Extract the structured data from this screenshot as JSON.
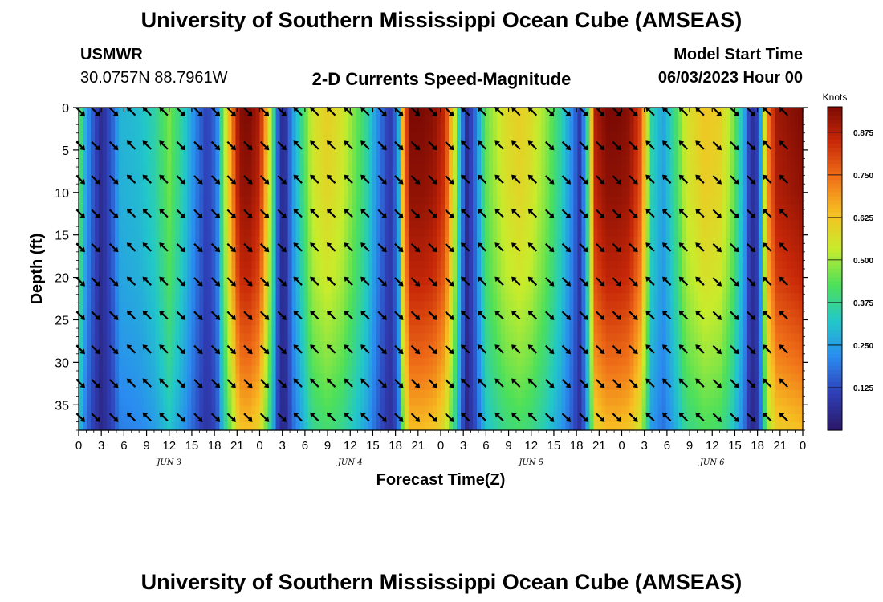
{
  "header": {
    "title": "University of Southern Mississippi Ocean Cube (AMSEAS)",
    "station": "USMWR",
    "location": "30.0757N  88.7961W",
    "model_label": "Model Start Time",
    "model_time": "06/03/2023 Hour 00"
  },
  "footer": {
    "title": "University of Southern Mississippi Ocean Cube (AMSEAS)"
  },
  "chart_data": {
    "type": "heatmap",
    "title": "2-D Currents Speed-Magnitude",
    "xlabel": "Forecast Time(Z)",
    "ylabel": "Depth (ft)",
    "x_range_hours": [
      0,
      96
    ],
    "y_range_ft": [
      0,
      38
    ],
    "y_inverted": true,
    "x_tick_labels": [
      "0",
      "3",
      "6",
      "9",
      "12",
      "15",
      "18",
      "21",
      "0",
      "3",
      "6",
      "9",
      "12",
      "15",
      "18",
      "21",
      "0",
      "3",
      "6",
      "9",
      "12",
      "15",
      "18",
      "21",
      "0",
      "3",
      "6",
      "9",
      "12",
      "15",
      "18",
      "21",
      "0"
    ],
    "y_ticks": [
      0,
      5,
      10,
      15,
      20,
      25,
      30,
      35
    ],
    "day_labels": [
      {
        "label": "JUN 3",
        "hour": 12
      },
      {
        "label": "JUN 4",
        "hour": 36
      },
      {
        "label": "JUN 5",
        "hour": 60
      },
      {
        "label": "JUN 6",
        "hour": 84
      }
    ],
    "colorbar": {
      "unit": "Knots",
      "min": 0.0,
      "max": 0.95,
      "ticks": [
        "0.125",
        "0.250",
        "0.375",
        "0.500",
        "0.625",
        "0.750",
        "0.875"
      ],
      "colors": [
        "#2b1a6b",
        "#2f3fb7",
        "#2a8cf0",
        "#22c8c8",
        "#4de05a",
        "#c8ec2c",
        "#f7c022",
        "#f07018",
        "#c82808",
        "#7a0a04"
      ]
    },
    "speed_profile_hours": [
      0,
      0.5,
      1.5,
      3,
      4.5,
      5.5,
      8,
      10,
      12,
      14,
      15.5,
      17,
      18.3,
      19.3,
      21.3,
      22.5,
      24,
      25.5,
      26.5,
      27.2,
      28.5,
      31,
      33,
      35,
      38,
      39.8,
      41.2,
      42.3,
      43,
      44,
      45.5,
      47,
      48.5,
      50,
      50.8,
      51.5,
      52.6,
      54,
      56.5,
      58.5,
      60,
      62,
      64,
      65.5,
      66.5,
      67.3,
      68.5,
      70,
      71.5,
      73,
      74.5,
      76,
      77.5,
      79,
      80.5,
      83,
      85,
      86.5,
      88,
      88.8,
      89.6,
      90.3,
      91.2,
      92.5,
      96
    ],
    "speed_profile_knots": [
      0.48,
      0.33,
      0.18,
      0.05,
      0.16,
      0.28,
      0.3,
      0.35,
      0.46,
      0.33,
      0.2,
      0.1,
      0.18,
      0.5,
      0.93,
      0.95,
      0.88,
      0.5,
      0.12,
      0.03,
      0.25,
      0.55,
      0.6,
      0.55,
      0.38,
      0.2,
      0.08,
      0.2,
      0.7,
      0.95,
      0.95,
      0.93,
      0.85,
      0.5,
      0.2,
      0.05,
      0.18,
      0.45,
      0.57,
      0.6,
      0.57,
      0.48,
      0.35,
      0.2,
      0.08,
      0.3,
      0.88,
      0.95,
      0.95,
      0.93,
      0.8,
      0.35,
      0.25,
      0.38,
      0.55,
      0.62,
      0.6,
      0.5,
      0.3,
      0.12,
      0.04,
      0.2,
      0.7,
      0.9,
      0.95
    ],
    "depth_profile_ft": [
      0,
      10,
      20,
      30,
      38
    ],
    "depth_factor": [
      1.0,
      0.97,
      0.9,
      0.78,
      0.66
    ],
    "arrow_row_depths_ft": [
      0,
      4,
      8,
      12,
      16,
      20,
      24,
      28,
      32,
      36
    ],
    "arrow_column_hours": [
      0,
      2,
      4.4,
      6.8,
      8.9,
      11.1,
      13.3,
      15.6,
      17.9,
      20,
      22.2,
      24.4,
      26.7,
      28.9,
      31.1,
      33.3,
      35.6,
      37.8,
      40,
      42.2,
      44.4,
      46.7,
      48.9,
      51.1,
      53.3,
      55.6,
      57.8,
      60,
      62.2,
      64.4,
      66.7,
      68.9,
      71.1,
      73.3,
      75.6,
      77.8,
      80,
      82.2,
      84.4,
      86.7,
      88.9,
      91.1,
      93.3
    ],
    "arrow_direction_cycle": [
      {
        "hour": 0,
        "dir": "SE"
      },
      {
        "hour": 5,
        "dir": "NW"
      },
      {
        "hour": 12,
        "dir": "SE"
      },
      {
        "hour": 19,
        "dir": "SE"
      },
      {
        "hour": 27,
        "dir": "NW"
      },
      {
        "hour": 38,
        "dir": "SE"
      },
      {
        "hour": 51,
        "dir": "NW"
      },
      {
        "hour": 62,
        "dir": "SE"
      },
      {
        "hour": 75,
        "dir": "NW"
      },
      {
        "hour": 84,
        "dir": "SE"
      },
      {
        "hour": 90,
        "dir": "NW"
      },
      {
        "hour": 96,
        "dir": "SE"
      }
    ]
  }
}
